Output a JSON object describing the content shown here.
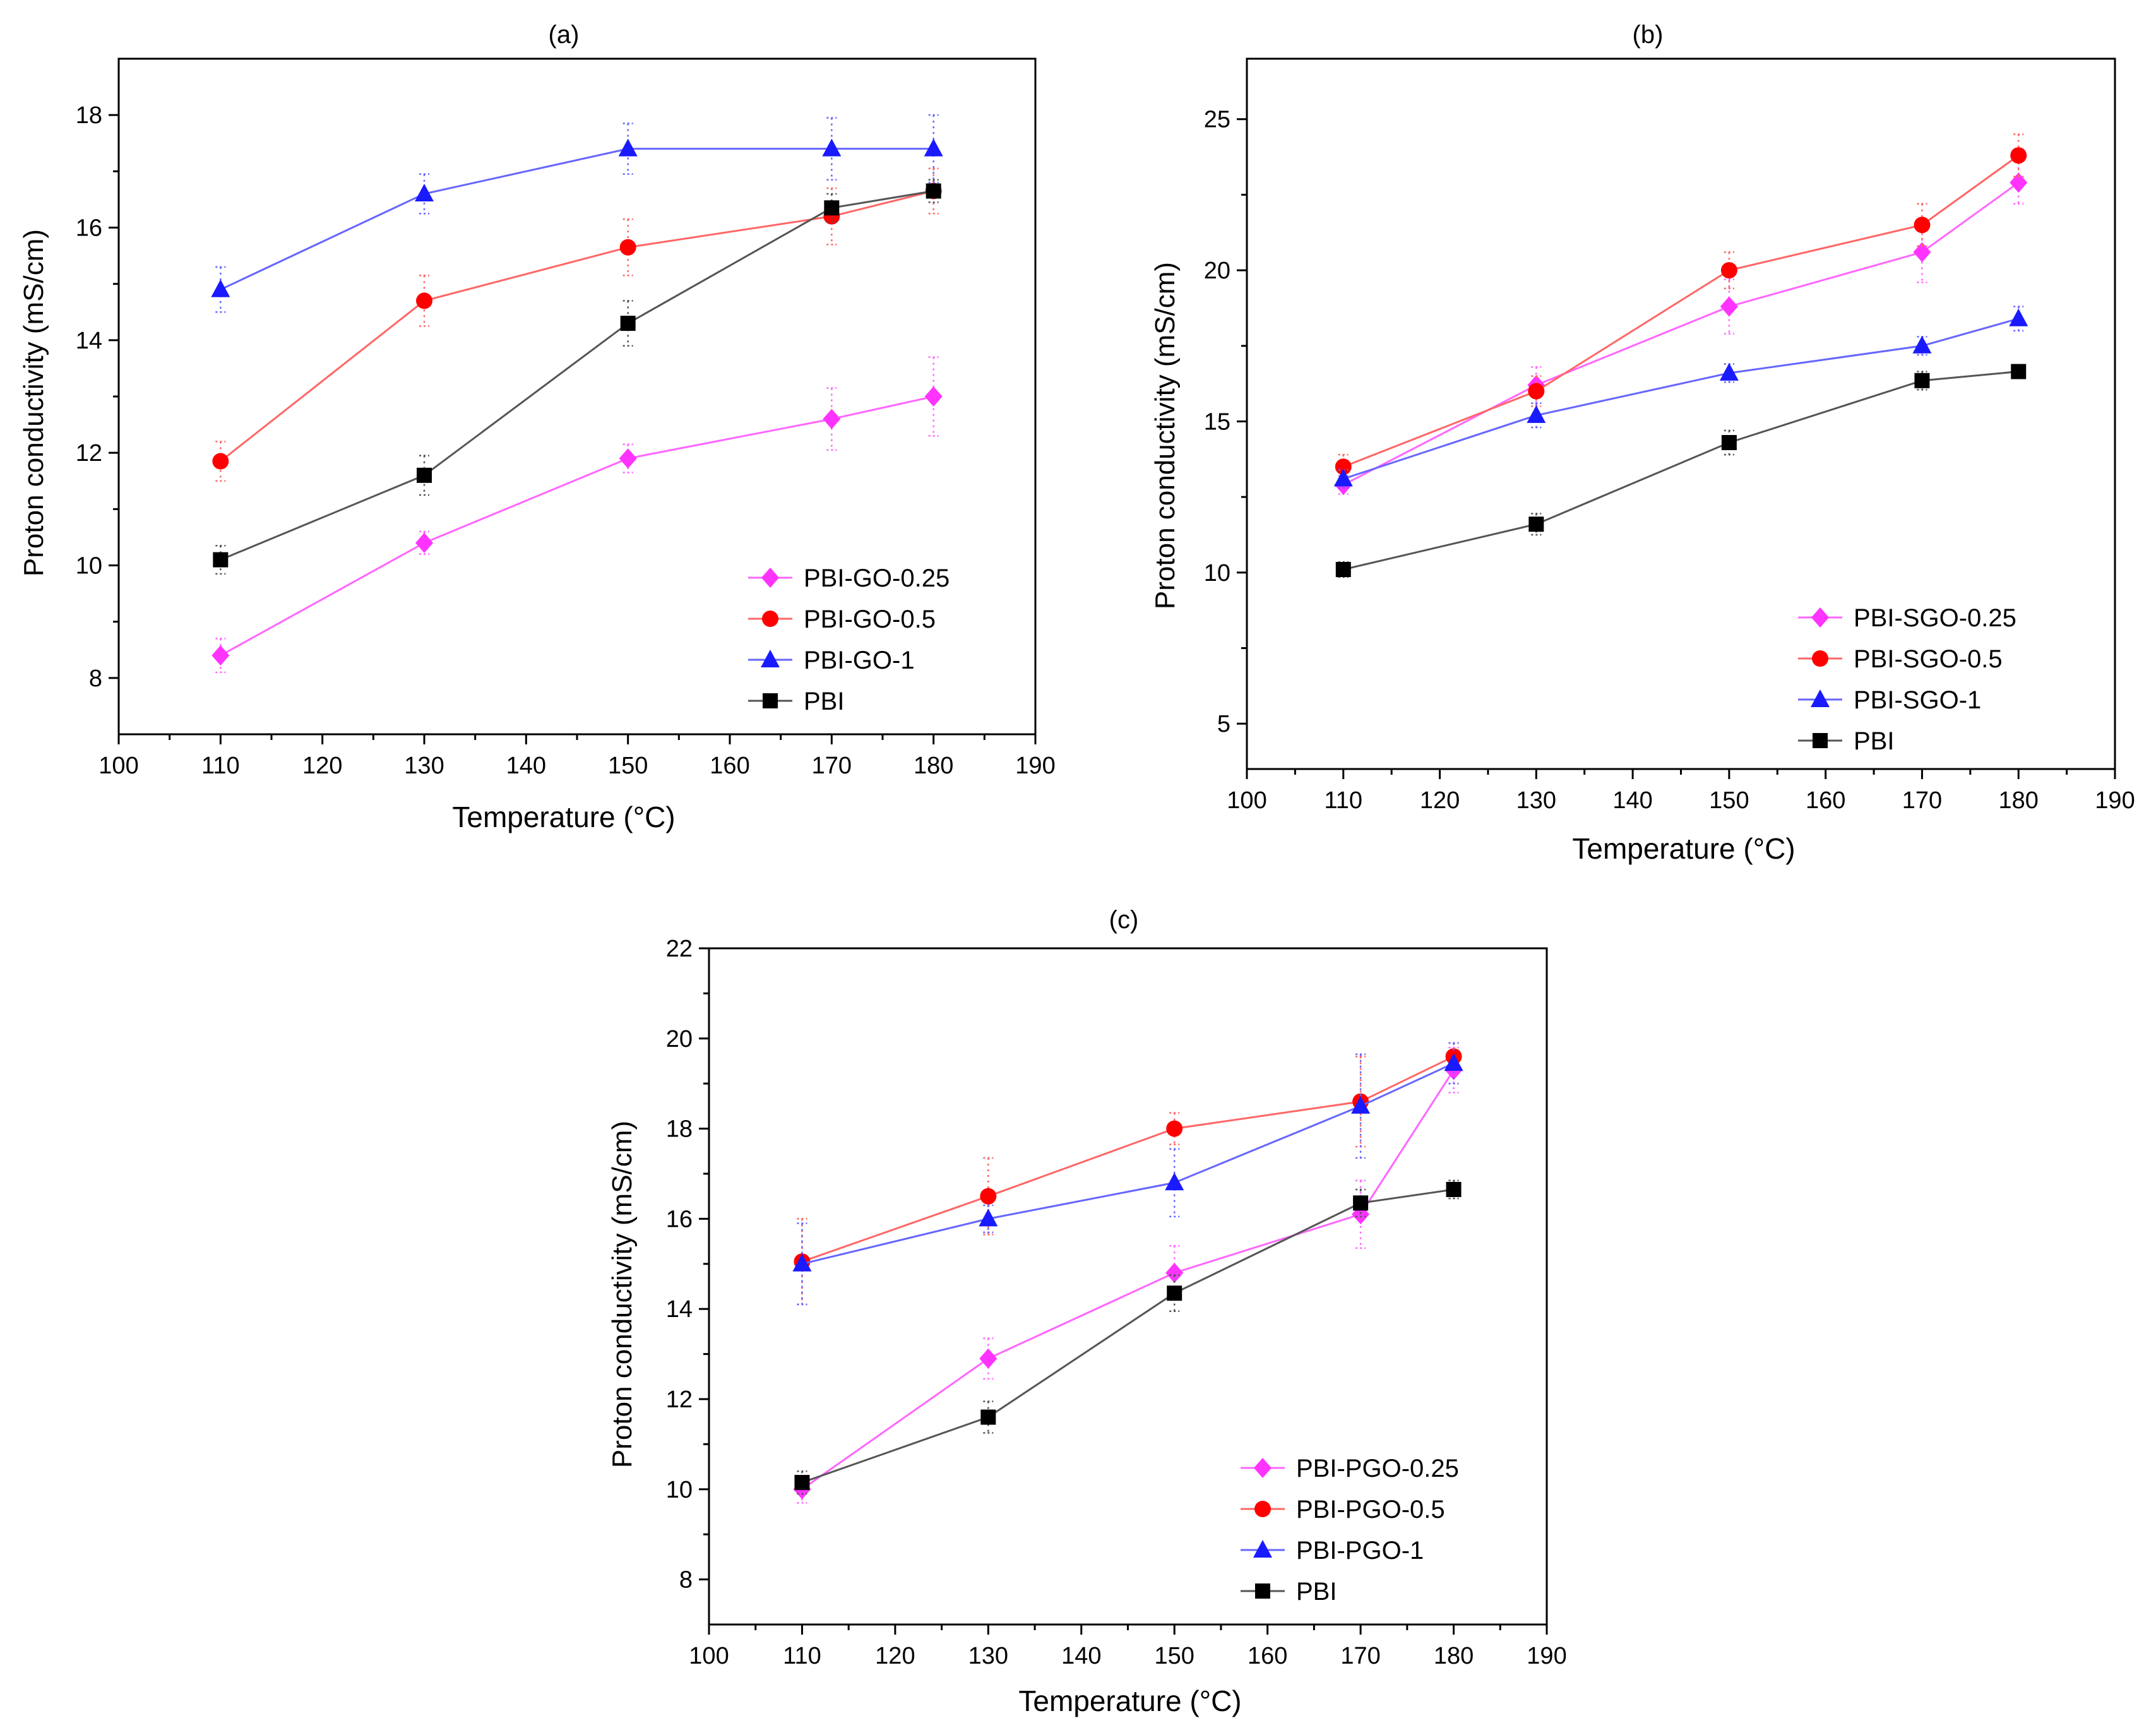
{
  "colors": {
    "magenta": "#ff33ff",
    "red": "#ff0000",
    "blue": "#1a1aff",
    "black": "#000000",
    "line_magenta": "#ff66ff",
    "line_red": "#ff6666",
    "line_blue": "#6666ff",
    "line_black": "#555555"
  },
  "chart_data": [
    {
      "type": "line",
      "panel_label": "(a)",
      "xlabel": "Temperature (°C)",
      "ylabel": "Proton conductivity (mS/cm)",
      "xlim": [
        100,
        190
      ],
      "ylim": [
        7,
        19
      ],
      "xticks": [
        100,
        110,
        120,
        130,
        140,
        150,
        160,
        170,
        180,
        190
      ],
      "yticks": [
        8,
        10,
        12,
        14,
        16,
        18
      ],
      "x": [
        110,
        130,
        150,
        170,
        180
      ],
      "legend_position": "bottom-right",
      "series": [
        {
          "name": "PBI-GO-0.25",
          "marker": "diamond",
          "color": "magenta",
          "values": [
            8.4,
            10.4,
            11.9,
            12.6,
            13.0
          ],
          "errors": [
            0.3,
            0.2,
            0.25,
            0.55,
            0.7
          ]
        },
        {
          "name": "PBI-GO-0.5",
          "marker": "circle",
          "color": "red",
          "values": [
            11.85,
            14.7,
            15.65,
            16.2,
            16.65
          ],
          "errors": [
            0.35,
            0.45,
            0.5,
            0.5,
            0.4
          ]
        },
        {
          "name": "PBI-GO-1",
          "marker": "triangle",
          "color": "blue",
          "values": [
            14.9,
            16.6,
            17.4,
            17.4,
            17.4
          ],
          "errors": [
            0.4,
            0.35,
            0.45,
            0.55,
            0.6
          ]
        },
        {
          "name": "PBI",
          "marker": "square",
          "color": "black",
          "values": [
            10.1,
            11.6,
            14.3,
            16.35,
            16.65
          ],
          "errors": [
            0.25,
            0.35,
            0.4,
            0.25,
            0.2
          ]
        }
      ]
    },
    {
      "type": "line",
      "panel_label": "(b)",
      "xlabel": "Temperature (°C)",
      "ylabel": "Proton conductivity (mS/cm)",
      "xlim": [
        100,
        190
      ],
      "ylim": [
        3.5,
        27
      ],
      "xticks": [
        100,
        110,
        120,
        130,
        140,
        150,
        160,
        170,
        180,
        190
      ],
      "yticks": [
        5,
        10,
        15,
        20,
        25
      ],
      "x": [
        110,
        130,
        150,
        170,
        180
      ],
      "legend_position": "bottom-right",
      "series": [
        {
          "name": "PBI-SGO-0.25",
          "marker": "diamond",
          "color": "magenta",
          "values": [
            12.9,
            16.2,
            18.8,
            20.6,
            22.9
          ],
          "errors": [
            0.3,
            0.6,
            0.9,
            1.0,
            0.7
          ]
        },
        {
          "name": "PBI-SGO-0.5",
          "marker": "circle",
          "color": "red",
          "values": [
            13.5,
            16.0,
            20.0,
            21.5,
            23.8
          ],
          "errors": [
            0.4,
            0.5,
            0.6,
            0.7,
            0.7
          ]
        },
        {
          "name": "PBI-SGO-1",
          "marker": "triangle",
          "color": "blue",
          "values": [
            13.1,
            15.2,
            16.6,
            17.5,
            18.4
          ],
          "errors": [
            0.3,
            0.4,
            0.3,
            0.3,
            0.4
          ]
        },
        {
          "name": "PBI",
          "marker": "square",
          "color": "black",
          "values": [
            10.1,
            11.6,
            14.3,
            16.35,
            16.65
          ],
          "errors": [
            0.25,
            0.35,
            0.4,
            0.3,
            0.2
          ]
        }
      ]
    },
    {
      "type": "line",
      "panel_label": "(c)",
      "xlabel": "Temperature (°C)",
      "ylabel": "Proton conductivity (mS/cm)",
      "xlim": [
        100,
        190
      ],
      "ylim": [
        7,
        22
      ],
      "xticks": [
        100,
        110,
        120,
        130,
        140,
        150,
        160,
        170,
        180,
        190
      ],
      "yticks": [
        8,
        10,
        12,
        14,
        16,
        18,
        20,
        22
      ],
      "x": [
        110,
        130,
        150,
        170,
        180
      ],
      "legend_position": "bottom-right",
      "series": [
        {
          "name": "PBI-PGO-0.25",
          "marker": "diamond",
          "color": "magenta",
          "values": [
            10.0,
            12.9,
            14.8,
            16.1,
            19.3
          ],
          "errors": [
            0.3,
            0.45,
            0.6,
            0.75,
            0.5
          ]
        },
        {
          "name": "PBI-PGO-0.5",
          "marker": "circle",
          "color": "red",
          "values": [
            15.05,
            16.5,
            18.0,
            18.6,
            19.6
          ],
          "errors": [
            0.95,
            0.85,
            0.35,
            1.0,
            0.3
          ]
        },
        {
          "name": "PBI-PGO-1",
          "marker": "triangle",
          "color": "blue",
          "values": [
            15.0,
            16.0,
            16.8,
            18.5,
            19.45
          ],
          "errors": [
            0.9,
            0.3,
            0.75,
            1.15,
            0.45
          ]
        },
        {
          "name": "PBI",
          "marker": "square",
          "color": "black",
          "values": [
            10.15,
            11.6,
            14.35,
            16.35,
            16.65
          ],
          "errors": [
            0.25,
            0.35,
            0.4,
            0.3,
            0.2
          ]
        }
      ]
    }
  ]
}
